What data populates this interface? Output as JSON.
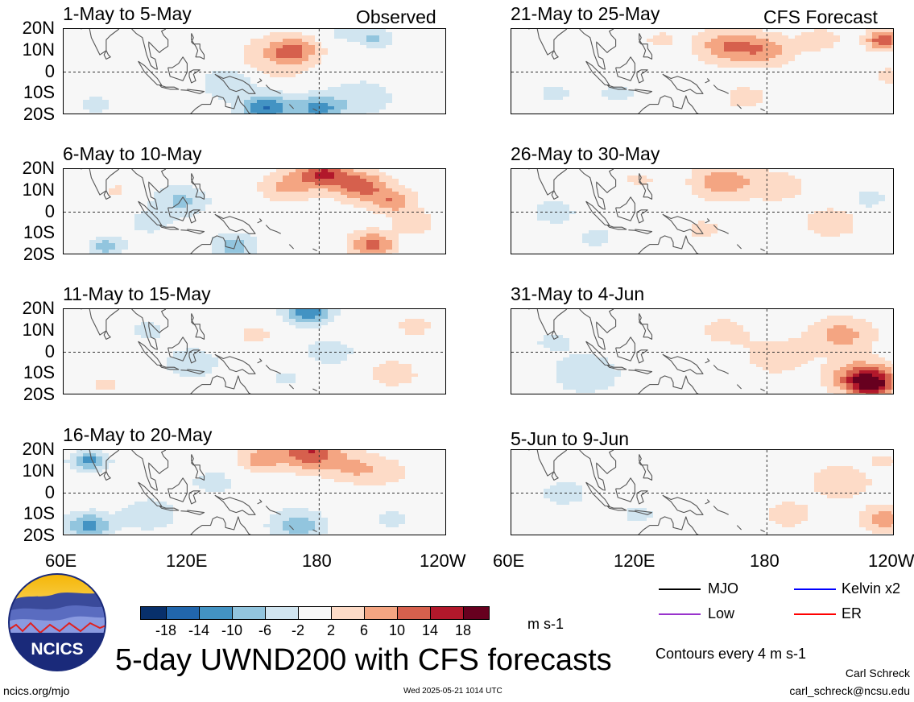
{
  "panels": [
    {
      "title": "1-May to 5-May",
      "tag": "Observed",
      "blobs": [
        [
          88,
          12,
          2,
          8,
          -10,
          -8
        ],
        [
          100,
          10,
          -0.5,
          6,
          -10,
          -4
        ],
        [
          168,
          10,
          10,
          10,
          -5,
          -1
        ],
        [
          160,
          7,
          5,
          18,
          -7,
          -4
        ],
        [
          138,
          -5,
          -6,
          12,
          -5,
          -3
        ],
        [
          155,
          -17,
          -14,
          12,
          -5,
          -4
        ],
        [
          180,
          -17,
          -12,
          11,
          -5,
          -4
        ],
        [
          200,
          -12,
          -5,
          14,
          -6,
          -3
        ],
        [
          206,
          16,
          -7,
          8,
          -4,
          -2
        ],
        [
          75,
          -15,
          -4,
          8,
          -6,
          -4
        ],
        [
          190,
          18,
          -3,
          8,
          -4,
          -2
        ]
      ]
    },
    {
      "title": "6-May to 10-May",
      "tag": "",
      "blobs": [
        [
          182,
          18,
          14,
          12,
          -6,
          -4
        ],
        [
          200,
          12,
          12,
          12,
          -5,
          -4
        ],
        [
          215,
          5,
          9,
          10,
          -6,
          -4
        ],
        [
          165,
          12,
          7,
          12,
          -6,
          -3
        ],
        [
          115,
          5,
          -7,
          12,
          -6,
          -5
        ],
        [
          140,
          -16,
          -8,
          10,
          -5,
          -4
        ],
        [
          80,
          -16,
          -8,
          8,
          -5,
          -3
        ],
        [
          205,
          -15,
          12,
          10,
          -7,
          -5
        ],
        [
          100,
          -5,
          -3,
          12,
          -6,
          -3
        ],
        [
          225,
          -5,
          4,
          10,
          -5,
          -4
        ],
        [
          85,
          10,
          3,
          6,
          -4,
          -3
        ]
      ]
    },
    {
      "title": "11-May to 15-May",
      "tag": "",
      "blobs": [
        [
          175,
          19,
          -14,
          10,
          -5,
          -2
        ],
        [
          150,
          8,
          3,
          10,
          -6,
          -3
        ],
        [
          215,
          -10,
          4,
          12,
          -5,
          -4
        ],
        [
          185,
          0,
          -4,
          12,
          -6,
          -4
        ],
        [
          120,
          -5,
          -4,
          14,
          -6,
          -4
        ],
        [
          100,
          10,
          -3,
          10,
          -6,
          -4
        ],
        [
          80,
          -15,
          3,
          8,
          -5,
          -3
        ],
        [
          225,
          12,
          4,
          8,
          -5,
          -3
        ],
        [
          165,
          -12,
          -3,
          8,
          -5,
          -3
        ]
      ]
    },
    {
      "title": "16-May to 20-May",
      "tag": "",
      "blobs": [
        [
          175,
          19,
          14,
          14,
          -4,
          -2
        ],
        [
          152,
          16,
          8,
          10,
          -4,
          -2
        ],
        [
          195,
          12,
          6,
          12,
          -5,
          -3
        ],
        [
          72,
          15,
          -12,
          8,
          -6,
          -4
        ],
        [
          72,
          -15,
          -12,
          10,
          -6,
          -4
        ],
        [
          100,
          -10,
          -6,
          12,
          -6,
          -4
        ],
        [
          170,
          -15,
          -9,
          12,
          -6,
          -4
        ],
        [
          215,
          -12,
          -3,
          10,
          -5,
          -3
        ],
        [
          210,
          10,
          4,
          12,
          -5,
          -3
        ],
        [
          130,
          5,
          -4,
          10,
          -5,
          -3
        ]
      ]
    },
    {
      "title": "21-May to 25-May",
      "tag": "CFS Forecast",
      "blobs": [
        [
          162,
          12,
          10,
          14,
          -5,
          -2
        ],
        [
          180,
          10,
          8,
          12,
          -6,
          -3
        ],
        [
          235,
          15,
          14,
          8,
          -5,
          -3
        ],
        [
          130,
          15,
          3,
          8,
          -5,
          -3
        ],
        [
          205,
          15,
          4,
          10,
          -6,
          -3
        ],
        [
          238,
          -2,
          6,
          6,
          -5,
          -3
        ],
        [
          80,
          -10,
          -3,
          10,
          -5,
          -3
        ],
        [
          110,
          -10,
          -3,
          10,
          -5,
          -3
        ],
        [
          170,
          -12,
          4,
          10,
          -6,
          -4
        ],
        [
          225,
          -12,
          -2,
          10,
          -5,
          -3
        ],
        [
          150,
          -5,
          -2,
          8,
          -5,
          -3
        ]
      ]
    },
    {
      "title": "26-May to 30-May",
      "tag": "",
      "blobs": [
        [
          160,
          14,
          9,
          14,
          -5,
          -2
        ],
        [
          185,
          12,
          5,
          12,
          -6,
          -3
        ],
        [
          120,
          15,
          3,
          8,
          -5,
          -3
        ],
        [
          228,
          6,
          -4,
          8,
          -5,
          -3
        ],
        [
          210,
          -5,
          4,
          14,
          -5,
          -3
        ],
        [
          80,
          0,
          -3,
          14,
          -7,
          -4
        ],
        [
          100,
          -12,
          -3,
          10,
          -5,
          -3
        ],
        [
          150,
          -8,
          3,
          10,
          -5,
          -3
        ]
      ]
    },
    {
      "title": "31-May to 4-Jun",
      "tag": "",
      "blobs": [
        [
          225,
          -12,
          14,
          14,
          -6,
          -3
        ],
        [
          230,
          -15,
          12,
          10,
          -6,
          -3
        ],
        [
          215,
          8,
          8,
          14,
          -6,
          -3
        ],
        [
          185,
          -2,
          4,
          16,
          -7,
          -4
        ],
        [
          160,
          10,
          3,
          14,
          -6,
          -3
        ],
        [
          95,
          -10,
          -5,
          16,
          -7,
          -4
        ],
        [
          80,
          5,
          -3,
          10,
          -6,
          -4
        ],
        [
          130,
          12,
          2,
          8,
          -5,
          -3
        ]
      ]
    },
    {
      "title": "5-Jun to 9-Jun",
      "tag": "",
      "blobs": [
        [
          235,
          -12,
          9,
          10,
          -6,
          -3
        ],
        [
          215,
          5,
          5,
          14,
          -6,
          -3
        ],
        [
          190,
          -10,
          4,
          12,
          -6,
          -4
        ],
        [
          160,
          12,
          2,
          12,
          -5,
          -3
        ],
        [
          85,
          0,
          -3,
          14,
          -6,
          -4
        ],
        [
          120,
          -10,
          -3,
          10,
          -5,
          -3
        ],
        [
          235,
          15,
          4,
          6,
          -5,
          -3
        ]
      ]
    }
  ],
  "y_ticks": [
    "20N",
    "10N",
    "0",
    "10S",
    "20S"
  ],
  "x_ticks": [
    "60E",
    "120E",
    "180",
    "120W"
  ],
  "x_ticks_right": [
    "60E",
    "120E",
    "180",
    "120W"
  ],
  "colorbar": {
    "colors": [
      "#08306b",
      "#2166ac",
      "#4393c3",
      "#92c5de",
      "#d1e5f0",
      "#f7f7f7",
      "#fddbc7",
      "#f4a582",
      "#d6604d",
      "#b2182b",
      "#67001f"
    ],
    "labels": [
      "-18",
      "-14",
      "-10",
      "-6",
      "-2",
      "2",
      "6",
      "10",
      "14",
      "18"
    ],
    "units": "m s-1"
  },
  "legend": [
    {
      "label": "MJO",
      "color": "#000000"
    },
    {
      "label": "Kelvin x2",
      "color": "#0000ff"
    },
    {
      "label": "Low",
      "color": "#9933cc"
    },
    {
      "label": "ER",
      "color": "#ff0000"
    }
  ],
  "logo_text": "NCICS",
  "main_title": "5-day UWND200 with CFS forecasts",
  "contours_note": "Contours every 4 m s-1",
  "author": "Carl Schreck",
  "email": "carl_schreck@ncsu.edu",
  "url": "ncics.org/mjo",
  "timestamp": "Wed 2025-05-21 1014 UTC"
}
